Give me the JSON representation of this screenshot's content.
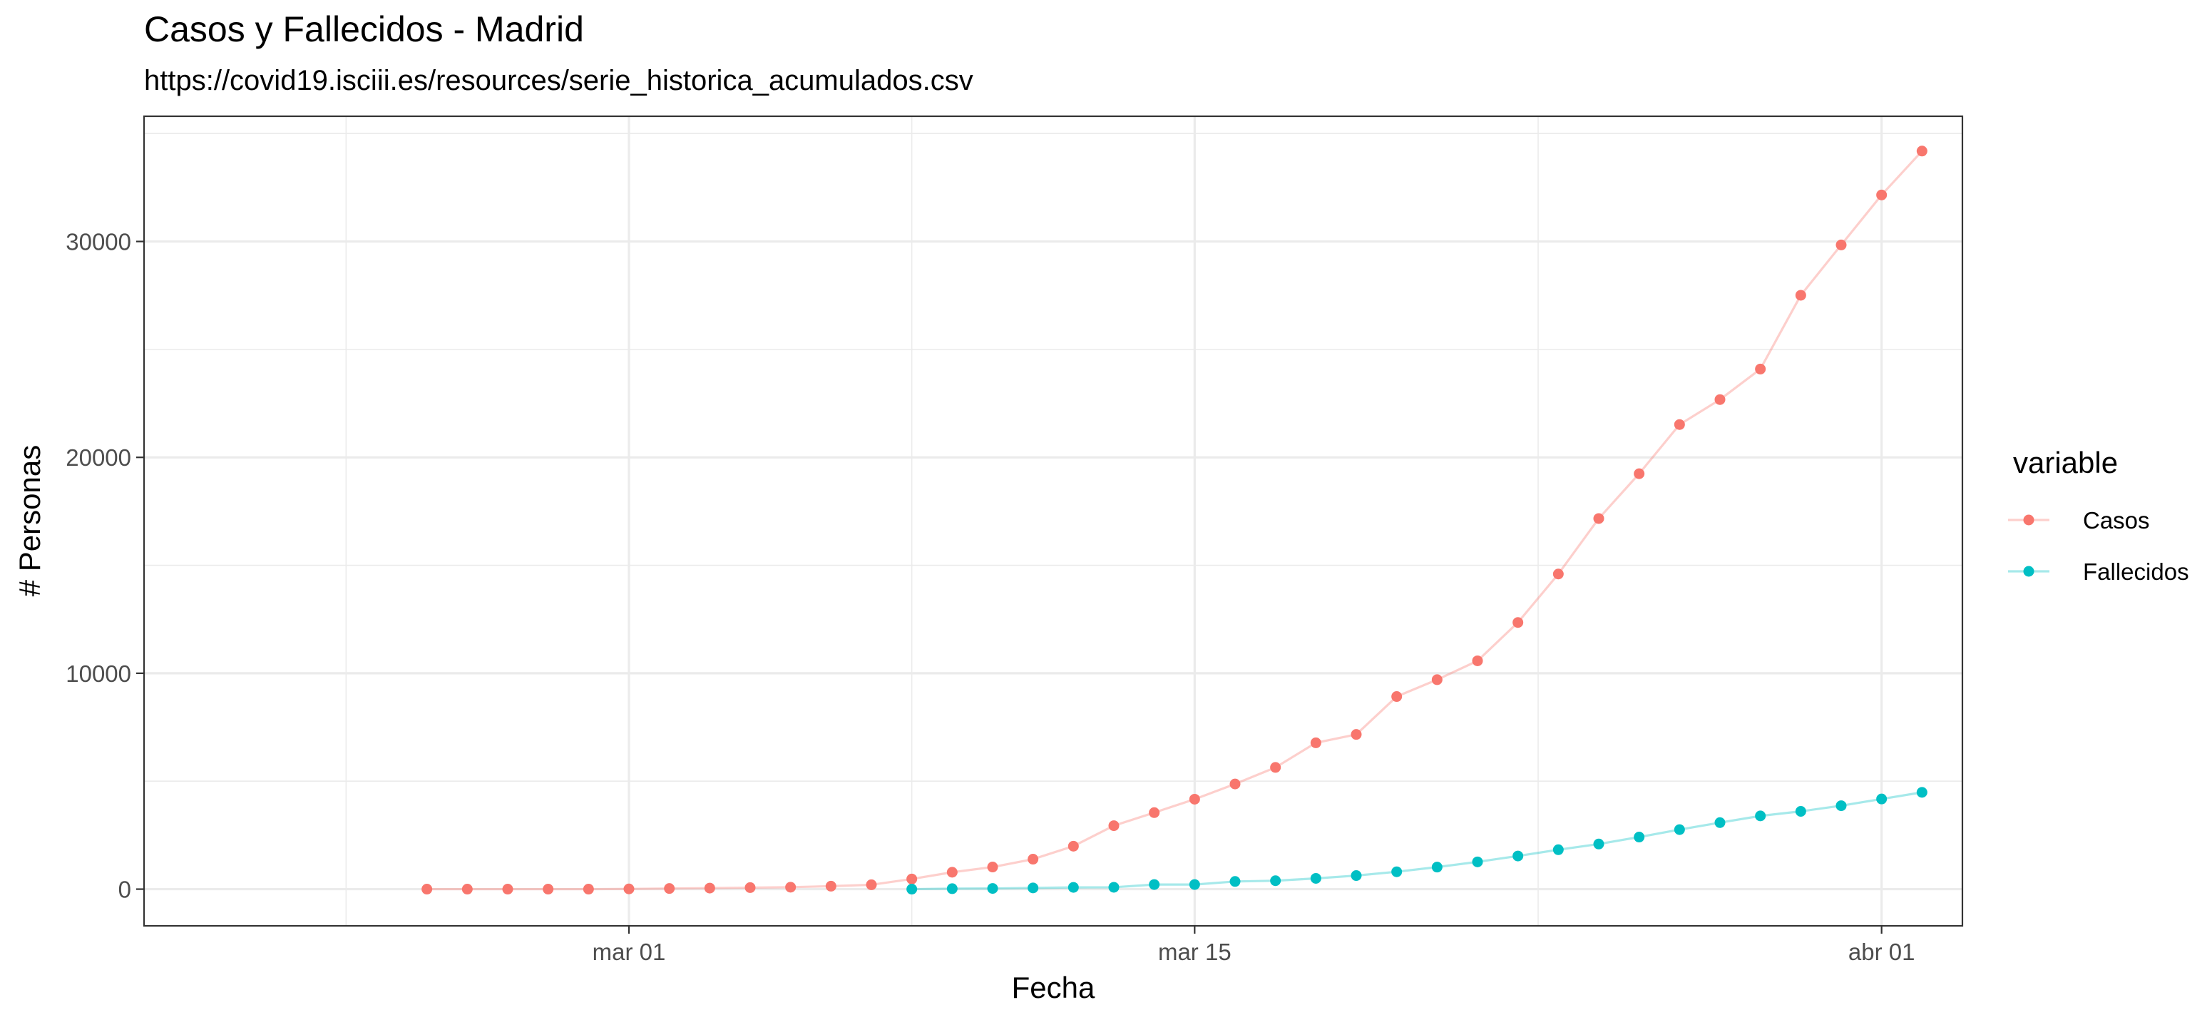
{
  "chart_data": {
    "type": "line",
    "title": "Casos y Fallecidos - Madrid",
    "subtitle": "https://covid19.isciii.es/resources/serie_historica_acumulados.csv",
    "xlabel": "Fecha",
    "ylabel": "# Personas",
    "x_tick_labels": [
      "mar 01",
      "mar 15",
      "abr 01"
    ],
    "y_tick_labels": [
      "0",
      "10000",
      "20000",
      "30000"
    ],
    "y_ticks": [
      0,
      10000,
      20000,
      30000
    ],
    "ylim": [
      -1700,
      35800
    ],
    "xlim": [
      "2020-02-18",
      "2020-04-03"
    ],
    "x_ticks": [
      "2020-03-01",
      "2020-03-15",
      "2020-04-01"
    ],
    "grid": true,
    "legend": {
      "title": "variable",
      "position": "right"
    },
    "series": [
      {
        "name": "Casos",
        "color": "#F8766D",
        "x": [
          "2020-02-25",
          "2020-02-26",
          "2020-02-27",
          "2020-02-28",
          "2020-02-29",
          "2020-03-01",
          "2020-03-02",
          "2020-03-03",
          "2020-03-04",
          "2020-03-05",
          "2020-03-06",
          "2020-03-07",
          "2020-03-08",
          "2020-03-09",
          "2020-03-10",
          "2020-03-11",
          "2020-03-12",
          "2020-03-13",
          "2020-03-14",
          "2020-03-15",
          "2020-03-16",
          "2020-03-17",
          "2020-03-18",
          "2020-03-19",
          "2020-03-20",
          "2020-03-21",
          "2020-03-22",
          "2020-03-23",
          "2020-03-24",
          "2020-03-25",
          "2020-03-26",
          "2020-03-27",
          "2020-03-28",
          "2020-03-29",
          "2020-03-30",
          "2020-03-31",
          "2020-04-01",
          "2020-04-02"
        ],
        "values": [
          0,
          0,
          0,
          0,
          0,
          10,
          29,
          49,
          70,
          90,
          137,
          202,
          469,
          782,
          1024,
          1388,
          1990,
          2940,
          3544,
          4165,
          4871,
          5637,
          6777,
          7165,
          8921,
          9702,
          10575,
          12352,
          14597,
          17166,
          19243,
          21520,
          22677,
          24090,
          27509,
          29840,
          32155,
          34188
        ]
      },
      {
        "name": "Fallecidos",
        "color": "#00BFC4",
        "x": [
          "2020-03-08",
          "2020-03-09",
          "2020-03-10",
          "2020-03-11",
          "2020-03-12",
          "2020-03-13",
          "2020-03-14",
          "2020-03-15",
          "2020-03-16",
          "2020-03-17",
          "2020-03-18",
          "2020-03-19",
          "2020-03-20",
          "2020-03-21",
          "2020-03-22",
          "2020-03-23",
          "2020-03-24",
          "2020-03-25",
          "2020-03-26",
          "2020-03-27",
          "2020-03-28",
          "2020-03-29",
          "2020-03-30",
          "2020-03-31",
          "2020-04-01",
          "2020-04-02"
        ],
        "values": [
          0,
          21,
          31,
          56,
          81,
          86,
          213,
          213,
          355,
          390,
          498,
          628,
          804,
          1021,
          1263,
          1535,
          1825,
          2090,
          2412,
          2757,
          3082,
          3392,
          3603,
          3865,
          4175,
          4483
        ]
      }
    ]
  }
}
